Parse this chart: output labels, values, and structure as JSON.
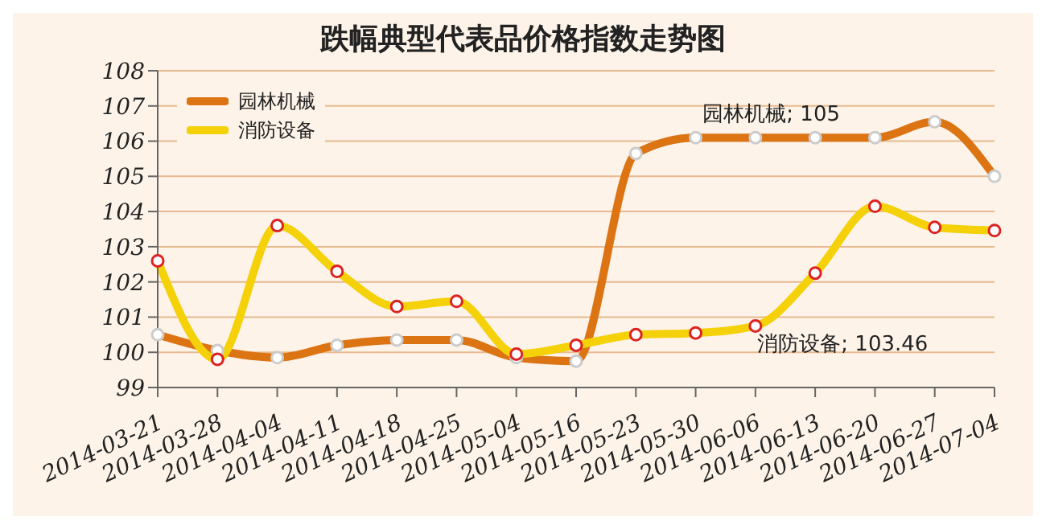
{
  "chart_data": {
    "type": "line",
    "title": "跌幅典型代表品价格指数走势图",
    "categories": [
      "2014-03-21",
      "2014-03-28",
      "2014-04-04",
      "2014-04-11",
      "2014-04-18",
      "2014-04-25",
      "2014-05-04",
      "2014-05-16",
      "2014-05-23",
      "2014-05-30",
      "2014-06-06",
      "2014-06-13",
      "2014-06-20",
      "2014-06-27",
      "2014-07-04"
    ],
    "series": [
      {
        "name": "园林机械",
        "color": "#dc7414",
        "values": [
          100.5,
          100.05,
          99.85,
          100.2,
          100.35,
          100.35,
          99.85,
          99.75,
          105.65,
          106.1,
          106.1,
          106.1,
          106.1,
          106.55,
          105
        ]
      },
      {
        "name": "消防设备",
        "color": "#f5d10a",
        "values": [
          102.6,
          99.8,
          103.6,
          102.3,
          101.3,
          101.45,
          99.95,
          100.2,
          100.5,
          100.55,
          100.75,
          102.25,
          104.15,
          103.55,
          103.46
        ]
      }
    ],
    "annotations": [
      "园林机械; 105",
      "消防设备; 103.46"
    ],
    "ylim": [
      99,
      108
    ],
    "yticks": [
      99,
      100,
      101,
      102,
      103,
      104,
      105,
      106,
      107,
      108
    ],
    "grid": "y",
    "legend": "top left",
    "marker": "circle",
    "line_style": "solid"
  }
}
